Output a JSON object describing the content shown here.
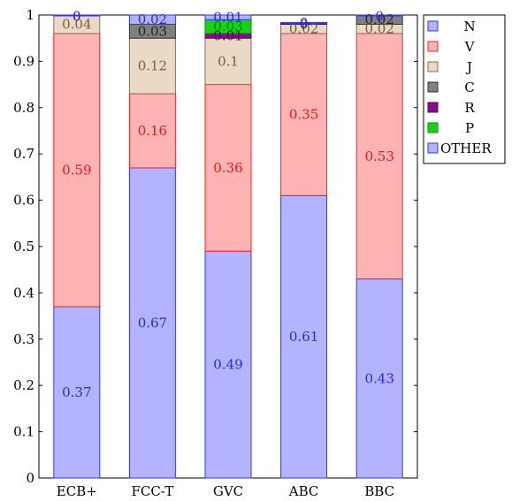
{
  "chart_data": {
    "type": "bar",
    "stacked": true,
    "categories": [
      "ECB+",
      "FCC-T",
      "GVC",
      "ABC",
      "BBC"
    ],
    "ylim": [
      0,
      1
    ],
    "yticks": [
      "0",
      "0.1",
      "0.2",
      "0.3",
      "0.4",
      "0.5",
      "0.6",
      "0.7",
      "0.8",
      "0.9",
      "1"
    ],
    "legend_position": "outside-top-right",
    "series": [
      {
        "name": "OTHER",
        "fill": "#b3b3ff",
        "stroke": "#3333ff",
        "label_color": "#2a2ad6",
        "values": [
          0.37,
          0.67,
          0.49,
          0.61,
          0.43
        ],
        "labels": [
          "0.37",
          "0.67",
          "0.49",
          "0.61",
          "0.43"
        ]
      },
      {
        "name": "V",
        "fill": "#ffb3b3",
        "stroke": "#ff2222",
        "label_color": "#e01b1b",
        "values": [
          0.59,
          0.16,
          0.36,
          0.35,
          0.53
        ],
        "labels": [
          "0.59",
          "0.16",
          "0.36",
          "0.35",
          "0.53"
        ]
      },
      {
        "name": "J",
        "fill": "#ead9c4",
        "stroke": "#8a6d55",
        "label_color": "#7a5c45",
        "values": [
          0.04,
          0.12,
          0.1,
          0.02,
          0.02
        ],
        "labels": [
          "0.04",
          "0.12",
          "0.1",
          "0.02",
          "0.02"
        ]
      },
      {
        "name": "C",
        "fill": "#808080",
        "stroke": "#333333",
        "label_color": "#222222",
        "values": [
          0.002,
          0.03,
          0.0,
          0.0,
          0.02
        ],
        "labels": [
          "0",
          "0.03",
          "",
          "0",
          "0.02"
        ]
      },
      {
        "name": "R",
        "fill": "#8b0b8b",
        "stroke": "#5a005a",
        "label_color": "#5a005a",
        "values": [
          0.0,
          0.0,
          0.01,
          0.002,
          0.0
        ],
        "labels": [
          "",
          "",
          "0.01",
          "",
          ""
        ]
      },
      {
        "name": "P",
        "fill": "#19d119",
        "stroke": "#0a8a0a",
        "label_color": "#0a8a0a",
        "values": [
          0.002,
          0.0,
          0.03,
          0.0,
          0.0
        ],
        "labels": [
          "",
          "",
          "0.03",
          "",
          ""
        ]
      },
      {
        "name": "N",
        "fill": "#b3b3ff",
        "stroke": "#3333ff",
        "label_color": "#2a2ad6",
        "values": [
          0.002,
          0.02,
          0.01,
          0.002,
          0.002
        ],
        "labels": [
          "0",
          "0.02",
          "0.01",
          "0",
          "0"
        ]
      }
    ],
    "legend": [
      "N",
      "V",
      "J",
      "C",
      "R",
      "P",
      "OTHER"
    ]
  }
}
